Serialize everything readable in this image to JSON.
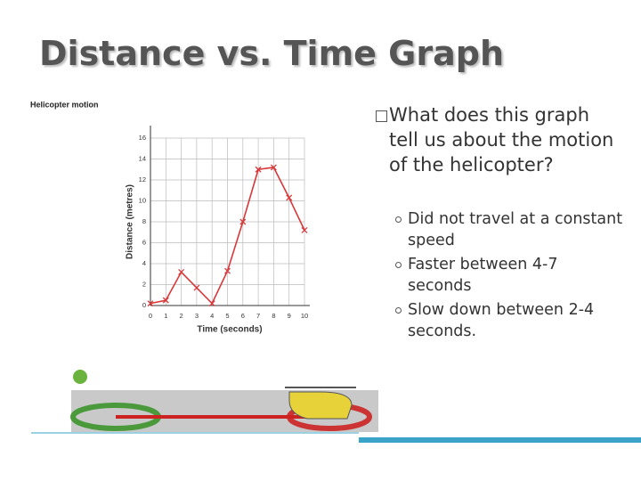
{
  "title": "Distance vs. Time Graph",
  "question": "What does this graph tell us about the motion of the helicopter?",
  "points": [
    "Did not travel at a constant speed",
    "Faster between 4-7 seconds",
    "Slow down between 2-4 seconds."
  ],
  "chart_data": {
    "type": "line",
    "title": "Helicopter motion",
    "x_label": "Time (seconds)",
    "y_label": "Distance (metres)",
    "x": [
      0,
      1,
      2,
      3,
      4,
      5,
      6,
      7,
      8,
      9,
      10
    ],
    "values": [
      0.2,
      0.5,
      3.2,
      1.7,
      0.2,
      3.3,
      8,
      13,
      13.2,
      10.3,
      7.2
    ],
    "color": "#d9383a",
    "xlim": [
      0,
      10
    ],
    "xticks": [
      0,
      1,
      2,
      3,
      4,
      5,
      6,
      7,
      8,
      9,
      10
    ],
    "ylim": [
      0,
      16
    ],
    "yticks": [
      0,
      2,
      4,
      6,
      8,
      10,
      12,
      14,
      16
    ],
    "grid": true
  }
}
